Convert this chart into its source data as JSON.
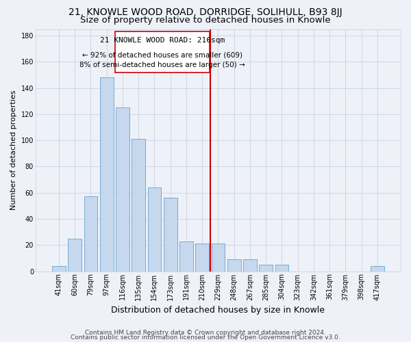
{
  "title1": "21, KNOWLE WOOD ROAD, DORRIDGE, SOLIHULL, B93 8JJ",
  "title2": "Size of property relative to detached houses in Knowle",
  "xlabel": "Distribution of detached houses by size in Knowle",
  "ylabel": "Number of detached properties",
  "bar_labels": [
    "41sqm",
    "60sqm",
    "79sqm",
    "97sqm",
    "116sqm",
    "135sqm",
    "154sqm",
    "173sqm",
    "191sqm",
    "210sqm",
    "229sqm",
    "248sqm",
    "267sqm",
    "285sqm",
    "304sqm",
    "323sqm",
    "342sqm",
    "361sqm",
    "379sqm",
    "398sqm",
    "417sqm"
  ],
  "bar_heights": [
    4,
    25,
    57,
    148,
    125,
    101,
    64,
    56,
    23,
    21,
    21,
    9,
    9,
    5,
    5,
    0,
    0,
    0,
    0,
    0,
    4
  ],
  "bar_color": "#c5d8ee",
  "bar_edge_color": "#7aaad0",
  "vline_x": 9.5,
  "vline_color": "#cc0000",
  "ylim": [
    0,
    185
  ],
  "yticks": [
    0,
    20,
    40,
    60,
    80,
    100,
    120,
    140,
    160,
    180
  ],
  "annotation_title": "21 KNOWLE WOOD ROAD: 216sqm",
  "annotation_line1": "← 92% of detached houses are smaller (609)",
  "annotation_line2": "8% of semi-detached houses are larger (50) →",
  "annotation_box_color": "#ffffff",
  "annotation_box_edge": "#cc0000",
  "footer1": "Contains HM Land Registry data © Crown copyright and database right 2024.",
  "footer2": "Contains public sector information licensed under the Open Government Licence v3.0.",
  "background_color": "#eef2f8",
  "plot_bg_color": "#eef2f8",
  "grid_color": "#d0d8e8",
  "title1_fontsize": 10,
  "title2_fontsize": 9.5,
  "xlabel_fontsize": 9,
  "ylabel_fontsize": 8,
  "tick_fontsize": 7,
  "ann_title_fontsize": 8,
  "ann_text_fontsize": 7.5,
  "footer_fontsize": 6.5
}
